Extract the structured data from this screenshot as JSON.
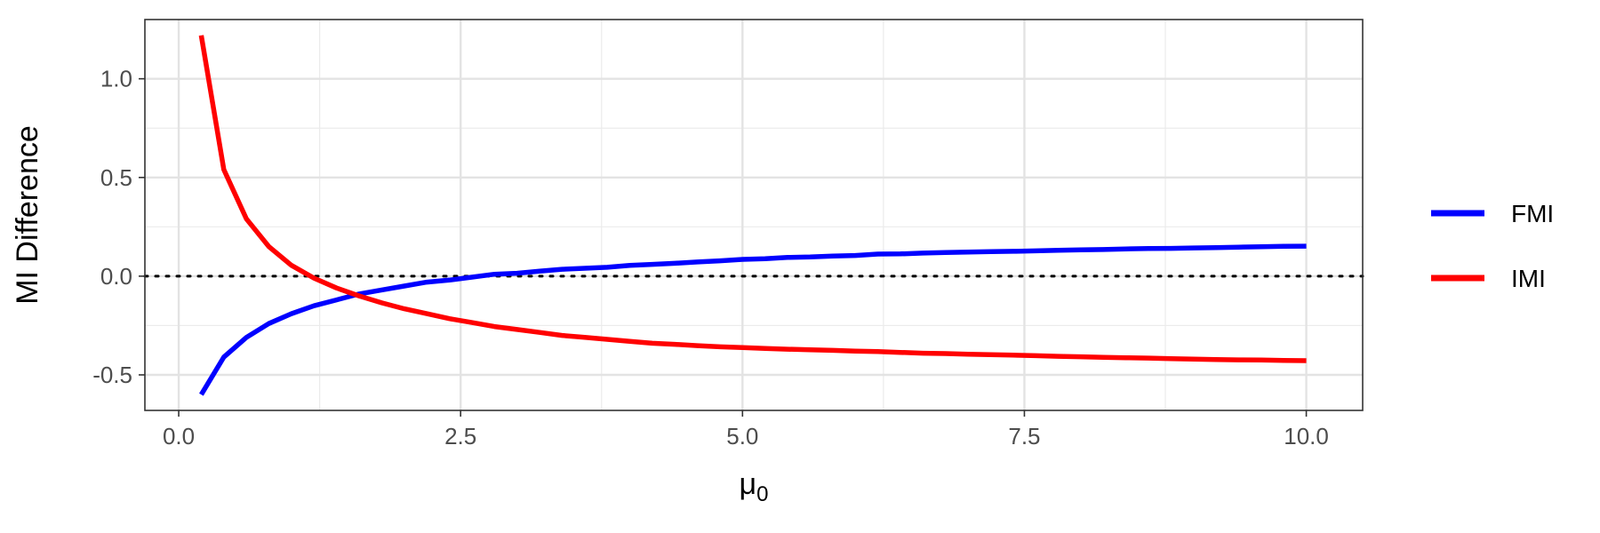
{
  "chart_data": {
    "type": "line",
    "title": "",
    "xlabel": "μ",
    "xlabel_sub": "0",
    "ylabel": "MI  Difference",
    "xlim": [
      -0.3,
      10.5
    ],
    "ylim": [
      -0.68,
      1.3
    ],
    "x_ticks": [
      0.0,
      2.5,
      5.0,
      7.5,
      10.0
    ],
    "x_tick_labels": [
      "0.0",
      "2.5",
      "5.0",
      "7.5",
      "10.0"
    ],
    "y_ticks": [
      -0.5,
      0.0,
      0.5,
      1.0
    ],
    "y_tick_labels": [
      "-0.5",
      "0.0",
      "0.5",
      "1.0"
    ],
    "grid": true,
    "legend_position": "right",
    "reference_line": {
      "y": 0,
      "style": "dotted"
    },
    "x": [
      0.2,
      0.4,
      0.6,
      0.8,
      1.0,
      1.2,
      1.4,
      1.6,
      1.8,
      2.0,
      2.2,
      2.4,
      2.6,
      2.8,
      3.0,
      3.2,
      3.4,
      3.6,
      3.8,
      4.0,
      4.2,
      4.4,
      4.6,
      4.8,
      5.0,
      5.2,
      5.4,
      5.6,
      5.8,
      6.0,
      6.2,
      6.4,
      6.6,
      6.8,
      7.0,
      7.2,
      7.4,
      7.6,
      7.8,
      8.0,
      8.2,
      8.4,
      8.6,
      8.8,
      9.0,
      9.2,
      9.4,
      9.6,
      9.8,
      10.0
    ],
    "series": [
      {
        "name": "FMI",
        "color": "#0000ff",
        "values": [
          -0.6,
          -0.41,
          -0.31,
          -0.24,
          -0.19,
          -0.15,
          -0.12,
          -0.09,
          -0.07,
          -0.05,
          -0.03,
          -0.02,
          -0.005,
          0.01,
          0.015,
          0.025,
          0.035,
          0.04,
          0.045,
          0.055,
          0.06,
          0.065,
          0.072,
          0.078,
          0.085,
          0.088,
          0.095,
          0.097,
          0.102,
          0.105,
          0.112,
          0.113,
          0.117,
          0.12,
          0.122,
          0.124,
          0.126,
          0.128,
          0.131,
          0.133,
          0.135,
          0.138,
          0.14,
          0.141,
          0.143,
          0.145,
          0.147,
          0.149,
          0.151,
          0.152
        ]
      },
      {
        "name": "IMI",
        "color": "#ff0000",
        "values": [
          1.22,
          0.54,
          0.29,
          0.15,
          0.055,
          -0.01,
          -0.06,
          -0.1,
          -0.135,
          -0.165,
          -0.19,
          -0.215,
          -0.235,
          -0.255,
          -0.27,
          -0.285,
          -0.3,
          -0.31,
          -0.32,
          -0.33,
          -0.34,
          -0.345,
          -0.352,
          -0.358,
          -0.362,
          -0.366,
          -0.37,
          -0.373,
          -0.376,
          -0.38,
          -0.382,
          -0.386,
          -0.39,
          -0.392,
          -0.395,
          -0.398,
          -0.4,
          -0.403,
          -0.406,
          -0.408,
          -0.411,
          -0.413,
          -0.415,
          -0.418,
          -0.42,
          -0.422,
          -0.424,
          -0.425,
          -0.427,
          -0.428
        ]
      }
    ]
  }
}
